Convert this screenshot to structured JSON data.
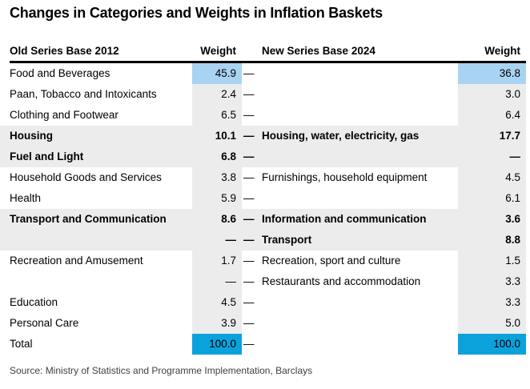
{
  "title": "Changes in Categories and Weights in Inflation Baskets",
  "source": "Source: Ministry of Statistics and Programme Implementation, Barclays",
  "colors": {
    "row_shade_gray": "#ECECEC",
    "weight_cell_gray": "#ECECEC",
    "highlight_light_blue": "#A9D3F2",
    "highlight_bright_blue": "#0BA2DC",
    "header_rule": "#000000",
    "source_text": "#3F3F3F"
  },
  "table": {
    "dash": "—",
    "headers": {
      "old_category": "Old Series Base 2012",
      "old_weight": "Weight",
      "new_category": "New Series Base 2024",
      "new_weight": "Weight"
    },
    "rows": [
      {
        "old_category": "Food and Beverages",
        "old_weight": "45.9",
        "new_category": "",
        "new_weight": "36.8",
        "emphasis": false,
        "weight_bg": "lightblue"
      },
      {
        "old_category": "Paan, Tobacco and Intoxicants",
        "old_weight": "2.4",
        "new_category": "",
        "new_weight": "3.0",
        "emphasis": false,
        "weight_bg": "gray"
      },
      {
        "old_category": "Clothing and Footwear",
        "old_weight": "6.5",
        "new_category": "",
        "new_weight": "6.4",
        "emphasis": false,
        "weight_bg": "gray"
      },
      {
        "old_category": "Housing",
        "old_weight": "10.1",
        "new_category": "Housing, water, electricity, gas",
        "new_weight": "17.7",
        "emphasis": true,
        "weight_bg": "gray"
      },
      {
        "old_category": "Fuel and Light",
        "old_weight": "6.8",
        "new_category": "",
        "new_weight": "—",
        "emphasis": true,
        "weight_bg": "gray"
      },
      {
        "old_category": "Household Goods and Services",
        "old_weight": "3.8",
        "new_category": "Furnishings, household equipment",
        "new_weight": "4.5",
        "emphasis": false,
        "weight_bg": "gray"
      },
      {
        "old_category": "Health",
        "old_weight": "5.9",
        "new_category": "",
        "new_weight": "6.1",
        "emphasis": false,
        "weight_bg": "gray"
      },
      {
        "old_category": "Transport and Communication",
        "old_weight": "8.6",
        "new_category": "Information and communication",
        "new_weight": "3.6",
        "emphasis": true,
        "weight_bg": "gray"
      },
      {
        "old_category": "",
        "old_weight": "—",
        "new_category": "Transport",
        "new_weight": "8.8",
        "emphasis": true,
        "weight_bg": "gray"
      },
      {
        "old_category": "Recreation and Amusement",
        "old_weight": "1.7",
        "new_category": "Recreation, sport and culture",
        "new_weight": "1.5",
        "emphasis": false,
        "weight_bg": "gray"
      },
      {
        "old_category": "",
        "old_weight": "—",
        "new_category": "Restaurants and accommodation",
        "new_weight": "3.3",
        "emphasis": false,
        "weight_bg": "gray"
      },
      {
        "old_category": "Education",
        "old_weight": "4.5",
        "new_category": "",
        "new_weight": "3.3",
        "emphasis": false,
        "weight_bg": "gray"
      },
      {
        "old_category": "Personal Care",
        "old_weight": "3.9",
        "new_category": "",
        "new_weight": "5.0",
        "emphasis": false,
        "weight_bg": "gray"
      },
      {
        "old_category": "Total",
        "old_weight": "100.0",
        "new_category": "",
        "new_weight": "100.0",
        "emphasis": false,
        "weight_bg": "brightblue"
      }
    ]
  },
  "chart_data": {
    "type": "table",
    "title": "Changes in Categories and Weights in Inflation Baskets",
    "columns": [
      "Old Series Base 2012",
      "Weight",
      "New Series Base 2024",
      "Weight"
    ],
    "rows": [
      [
        "Food and Beverages",
        45.9,
        null,
        36.8
      ],
      [
        "Paan, Tobacco and Intoxicants",
        2.4,
        null,
        3.0
      ],
      [
        "Clothing and Footwear",
        6.5,
        null,
        6.4
      ],
      [
        "Housing",
        10.1,
        "Housing, water, electricity, gas",
        17.7
      ],
      [
        "Fuel and Light",
        6.8,
        null,
        null
      ],
      [
        "Household Goods and Services",
        3.8,
        "Furnishings, household equipment",
        4.5
      ],
      [
        "Health",
        5.9,
        null,
        6.1
      ],
      [
        "Transport and Communication",
        8.6,
        "Information and communication",
        3.6
      ],
      [
        null,
        null,
        "Transport",
        8.8
      ],
      [
        "Recreation and Amusement",
        1.7,
        "Recreation, sport and culture",
        1.5
      ],
      [
        null,
        null,
        "Restaurants and accommodation",
        3.3
      ],
      [
        "Education",
        4.5,
        null,
        3.3
      ],
      [
        "Personal Care",
        3.9,
        null,
        5.0
      ],
      [
        "Total",
        100.0,
        null,
        100.0
      ]
    ],
    "source": "Source: Ministry of Statistics and Programme Implementation, Barclays",
    "highlights": {
      "light_blue_cells": "Food and Beverages weights (45.9, 36.8)",
      "bright_blue_cells": "Total weights (100.0, 100.0)",
      "bold_gray_rows": [
        "Housing",
        "Fuel and Light",
        "Transport and Communication",
        "Transport"
      ]
    }
  }
}
